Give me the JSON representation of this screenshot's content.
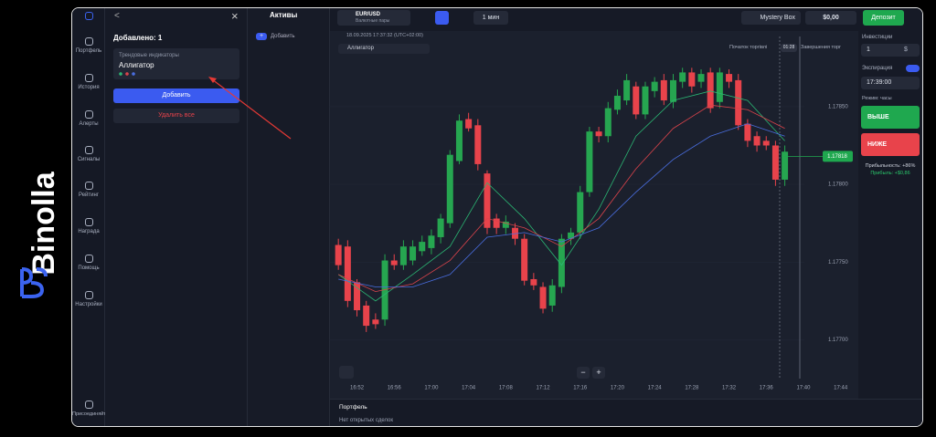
{
  "logo": "Binolla",
  "nav": [
    "Портфель",
    "История",
    "Алерты",
    "Сигналы",
    "Рейтинг",
    "Награда",
    "Помощь",
    "Настройки",
    "Присоединяйтесь"
  ],
  "indicators_panel": {
    "back": "<",
    "close": "×",
    "added": "Добавлено: 1",
    "card_category": "Трендовые индикаторы",
    "card_name": "Аллигатор",
    "add_button": "Добавить",
    "delete_all": "Удалить все"
  },
  "assets_panel": {
    "title": "Активы",
    "add": "Добавить",
    "plus": "+"
  },
  "topbar": {
    "pair": "EUR/USD",
    "pair_type": "Валютные пары",
    "timeframe": "1 мин",
    "mystery_box": "Mystery Box",
    "balance": "$0,00",
    "deposit": "Депозит"
  },
  "chart_header": {
    "datetime": "18.09.2025 17:37:32 (UTC+02:00)",
    "indicator": "Аллигатор",
    "trade_start": "Початок торгівлі",
    "timer": "01:28",
    "trade_end": "Завершения торг"
  },
  "right_panel": {
    "investment_label": "Инвестиции",
    "investment": "1",
    "currency": "$",
    "expiration_label": "Экспирация",
    "expiration": "17:39:00",
    "mode": "Режим: часы",
    "up": "ВЫШЕ",
    "down": "НИЖЕ",
    "profitability": "Прибыльность: +86%",
    "profit": "Прибыль: +$0,86"
  },
  "bottom": {
    "title": "Портфель",
    "empty": "Нет открытых сделок"
  },
  "zoom": {
    "minus": "−",
    "plus": "+"
  },
  "chart_data": {
    "type": "candlestick",
    "ylim": [
      1.17675,
      1.17901
    ],
    "yticks": [
      {
        "value": 1.1785,
        "label": "1.17850"
      },
      {
        "value": 1.178,
        "label": "1.17800"
      },
      {
        "value": 1.1775,
        "label": "1.17750"
      },
      {
        "value": 1.177,
        "label": "1.17700"
      }
    ],
    "xlim": [
      "16:49",
      "17:46"
    ],
    "xticks": [
      "16:52",
      "16:56",
      "17:00",
      "17:04",
      "17:08",
      "17:12",
      "17:16",
      "17:20",
      "17:24",
      "17:28",
      "17:32",
      "17:36",
      "17:40",
      "17:44"
    ],
    "current_price": 1.17818,
    "up_color": "#26a650",
    "down_color": "#e8434b",
    "candles": {
      "x": [
        "16:50",
        "16:51",
        "16:52",
        "16:53",
        "16:54",
        "16:55",
        "16:56",
        "16:57",
        "16:58",
        "16:59",
        "17:00",
        "17:01",
        "17:02",
        "17:03",
        "17:04",
        "17:05",
        "17:06",
        "17:07",
        "17:08",
        "17:09",
        "17:10",
        "17:11",
        "17:12",
        "17:13",
        "17:14",
        "17:15",
        "17:16",
        "17:17",
        "17:18",
        "17:19",
        "17:20",
        "17:21",
        "17:22",
        "17:23",
        "17:24",
        "17:25",
        "17:26",
        "17:27",
        "17:28",
        "17:29",
        "17:30",
        "17:31",
        "17:32",
        "17:33",
        "17:34",
        "17:35",
        "17:36",
        "17:37",
        "17:38"
      ],
      "open": [
        1.17761,
        1.1776,
        1.17737,
        1.17722,
        1.17713,
        1.17713,
        1.17751,
        1.17748,
        1.17751,
        1.17757,
        1.17759,
        1.17766,
        1.17775,
        1.17815,
        1.17842,
        1.17838,
        1.17807,
        1.17778,
        1.17772,
        1.17772,
        1.17765,
        1.17739,
        1.17734,
        1.17722,
        1.17734,
        1.17765,
        1.17769,
        1.17795,
        1.17834,
        1.17831,
        1.17848,
        1.17854,
        1.17863,
        1.17845,
        1.1786,
        1.17867,
        1.17853,
        1.17866,
        1.17872,
        1.17866,
        1.17872,
        1.17853,
        1.17871,
        1.17867,
        1.17839,
        1.17831,
        1.17828,
        1.17825,
        1.17803
      ],
      "high": [
        1.17765,
        1.17764,
        1.17739,
        1.17725,
        1.17717,
        1.17755,
        1.17755,
        1.17764,
        1.17764,
        1.17767,
        1.17771,
        1.17781,
        1.17822,
        1.17845,
        1.17846,
        1.17842,
        1.17809,
        1.17781,
        1.1778,
        1.17775,
        1.17768,
        1.17743,
        1.17737,
        1.17739,
        1.17768,
        1.17772,
        1.17799,
        1.17837,
        1.17837,
        1.17853,
        1.17861,
        1.17871,
        1.17866,
        1.17866,
        1.17869,
        1.17871,
        1.17871,
        1.17875,
        1.17875,
        1.17874,
        1.17875,
        1.17875,
        1.17874,
        1.17871,
        1.17842,
        1.17834,
        1.17831,
        1.17828,
        1.17825
      ],
      "low": [
        1.17745,
        1.17721,
        1.17715,
        1.17705,
        1.17707,
        1.17709,
        1.17745,
        1.17745,
        1.17748,
        1.17754,
        1.17755,
        1.17762,
        1.17772,
        1.17813,
        1.17834,
        1.17809,
        1.17768,
        1.17768,
        1.17768,
        1.17761,
        1.17735,
        1.17732,
        1.17717,
        1.17718,
        1.1773,
        1.17761,
        1.17765,
        1.17792,
        1.17827,
        1.17827,
        1.17845,
        1.17851,
        1.17842,
        1.17842,
        1.17856,
        1.17851,
        1.17849,
        1.17862,
        1.17859,
        1.17862,
        1.17846,
        1.17849,
        1.17862,
        1.17835,
        1.17824,
        1.17821,
        1.17822,
        1.17799,
        1.17799
      ],
      "close": [
        1.17748,
        1.17725,
        1.17719,
        1.17709,
        1.1771,
        1.17751,
        1.17748,
        1.1776,
        1.1776,
        1.17763,
        1.17767,
        1.17778,
        1.17819,
        1.17841,
        1.17836,
        1.17813,
        1.17772,
        1.17772,
        1.17776,
        1.17765,
        1.17738,
        1.17735,
        1.1772,
        1.17735,
        1.17765,
        1.17769,
        1.17795,
        1.17834,
        1.17831,
        1.17849,
        1.17857,
        1.17867,
        1.17845,
        1.17863,
        1.17866,
        1.17854,
        1.17867,
        1.17872,
        1.17863,
        1.17871,
        1.17849,
        1.17872,
        1.17866,
        1.17838,
        1.17828,
        1.17825,
        1.17825,
        1.17803,
        1.17821
      ]
    },
    "series": [
      {
        "color": "#2bb673",
        "x": [
          "16:50",
          "16:54",
          "16:58",
          "17:02",
          "17:06",
          "17:10",
          "17:14",
          "17:18",
          "17:22",
          "17:26",
          "17:30",
          "17:34",
          "17:38"
        ],
        "values": [
          1.17742,
          1.17725,
          1.17742,
          1.1776,
          1.17801,
          1.17778,
          1.17748,
          1.17784,
          1.17831,
          1.17854,
          1.1786,
          1.17854,
          1.17828
        ]
      },
      {
        "color": "#d9434b",
        "x": [
          "16:50",
          "16:54",
          "16:58",
          "17:02",
          "17:06",
          "17:10",
          "17:14",
          "17:18",
          "17:22",
          "17:26",
          "17:30",
          "17:34",
          "17:38"
        ],
        "values": [
          1.17742,
          1.17731,
          1.17736,
          1.17751,
          1.17778,
          1.17772,
          1.1776,
          1.17778,
          1.1781,
          1.17836,
          1.17851,
          1.17848,
          1.17836
        ]
      },
      {
        "color": "#4a6ee0",
        "x": [
          "16:50",
          "16:54",
          "16:58",
          "17:02",
          "17:06",
          "17:10",
          "17:14",
          "17:18",
          "17:22",
          "17:26",
          "17:30",
          "17:34",
          "17:38"
        ],
        "values": [
          1.17739,
          1.17734,
          1.17734,
          1.17742,
          1.17766,
          1.17769,
          1.17763,
          1.17772,
          1.17795,
          1.17816,
          1.17831,
          1.17839,
          1.17831
        ]
      }
    ]
  }
}
